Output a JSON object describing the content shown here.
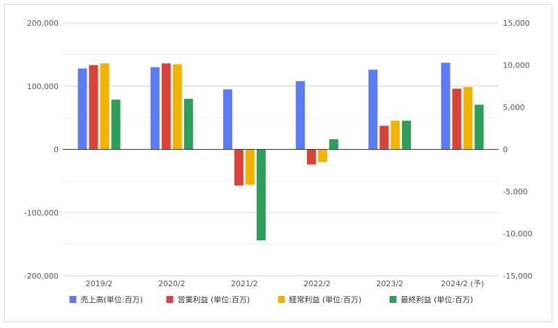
{
  "chart_data": {
    "type": "bar",
    "categories": [
      "2019/2",
      "2020/2",
      "2021/2",
      "2022/2",
      "2023/2",
      "2024/2 (予)"
    ],
    "series": [
      {
        "name": "売上高(単位:百万)",
        "axis": "left",
        "color": "#5b7cf2",
        "values": [
          128000,
          130000,
          95000,
          108000,
          126000,
          137000
        ]
      },
      {
        "name": "営業利益 (単位:百万)",
        "axis": "right",
        "color": "#d9443a",
        "values": [
          10000,
          10200,
          -4300,
          -1800,
          2800,
          7200
        ]
      },
      {
        "name": "経常利益 (単位:百万)",
        "axis": "right",
        "color": "#f0b400",
        "values": [
          10200,
          10100,
          -4200,
          -1500,
          3400,
          7400
        ]
      },
      {
        "name": "最終利益 (単位:百万)",
        "axis": "right",
        "color": "#2e9e58",
        "values": [
          5900,
          6000,
          -10800,
          1200,
          3400,
          5300
        ]
      }
    ],
    "y_left": {
      "ylim": [
        -200000,
        200000
      ],
      "ticks": [
        200000,
        100000,
        0,
        -100000,
        -200000
      ],
      "tick_labels": [
        "200,000",
        "100,000",
        "0",
        "-100,000",
        "-200,000"
      ]
    },
    "y_right": {
      "ylim": [
        -15000,
        15000
      ],
      "ticks": [
        15000,
        10000,
        5000,
        0,
        -5000,
        -10000,
        -15000
      ],
      "tick_labels": [
        "15,000",
        "10,000",
        "5,000",
        "0",
        "-5,000",
        "-10,000",
        "-15,000"
      ]
    },
    "grid": true,
    "legend": "bottom"
  }
}
